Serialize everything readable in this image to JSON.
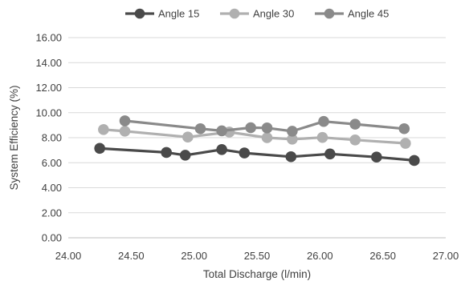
{
  "chart_data": {
    "type": "line",
    "xlabel": "Total Discharge (l/min)",
    "ylabel": "System Efficiency (%)",
    "xlim": [
      24.0,
      27.0
    ],
    "ylim": [
      0.0,
      16.0
    ],
    "x_ticks": [
      24.0,
      24.5,
      25.0,
      25.5,
      26.0,
      26.5,
      27.0
    ],
    "x_tick_labels": [
      "24.00",
      "24.50",
      "25.00",
      "25.50",
      "26.00",
      "26.50",
      "27.00"
    ],
    "y_ticks": [
      0,
      2,
      4,
      6,
      8,
      10,
      12,
      14,
      16
    ],
    "y_tick_labels": [
      "0.00",
      "2.00",
      "4.00",
      "6.00",
      "8.00",
      "10.00",
      "12.00",
      "14.00",
      "16.00"
    ],
    "grid": "horizontal",
    "legend_position": "top",
    "series": [
      {
        "name": "Angle 15",
        "color": "#4a4a4a",
        "points": [
          [
            24.25,
            7.15
          ],
          [
            24.78,
            6.82
          ],
          [
            24.93,
            6.6
          ],
          [
            25.22,
            7.05
          ],
          [
            25.4,
            6.78
          ],
          [
            25.77,
            6.48
          ],
          [
            26.08,
            6.7
          ],
          [
            26.45,
            6.45
          ],
          [
            26.75,
            6.18
          ]
        ]
      },
      {
        "name": "Angle 30",
        "color": "#b0b0b0",
        "points": [
          [
            24.28,
            8.65
          ],
          [
            24.45,
            8.52
          ],
          [
            24.95,
            8.05
          ],
          [
            25.28,
            8.45
          ],
          [
            25.58,
            8.0
          ],
          [
            25.78,
            7.88
          ],
          [
            26.02,
            8.02
          ],
          [
            26.28,
            7.82
          ],
          [
            26.68,
            7.55
          ]
        ]
      },
      {
        "name": "Angle 45",
        "color": "#8a8a8a",
        "points": [
          [
            24.45,
            9.35
          ],
          [
            25.05,
            8.72
          ],
          [
            25.22,
            8.55
          ],
          [
            25.45,
            8.8
          ],
          [
            25.58,
            8.78
          ],
          [
            25.78,
            8.52
          ],
          [
            26.03,
            9.3
          ],
          [
            26.28,
            9.08
          ],
          [
            26.67,
            8.72
          ]
        ]
      }
    ]
  }
}
